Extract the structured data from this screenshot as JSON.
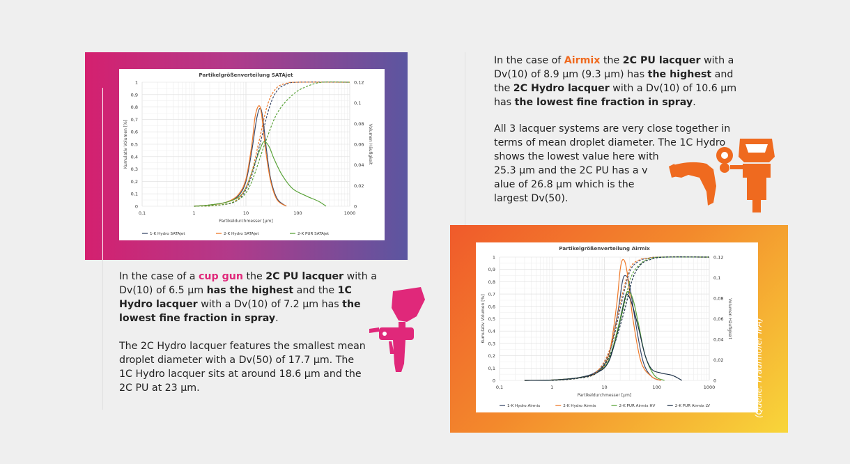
{
  "text_left": {
    "p1": {
      "pre": "In the case of a ",
      "highlight": "cup gun",
      "mid1": " the ",
      "bold1": "2C PU lacquer",
      "mid2": " with a Dv(10) of 6.5 µm ",
      "bold2": "has the highest",
      "mid3": " and the ",
      "bold3": "1C Hydro lacquer",
      "mid4": " with a Dv(10) of 7.2 µm has ",
      "bold4": "the lowest fine fraction in spray",
      "end": "."
    },
    "p2": "The 2C Hydro lacquer features the smallest mean droplet diameter with a Dv(50) of 17.7 µm. The 1C Hydro lacquer sits at around 18.6 µm and the 2C PU at 23 µm."
  },
  "text_right": {
    "p1": {
      "pre": "In the case of ",
      "highlight": "Airmix",
      "mid1": " the ",
      "bold1": "2C PU lacquer",
      "mid2": " with a Dv(10) of 8.9 µm (9.3 µm) has ",
      "bold2": "the highest",
      "mid3": " and the ",
      "bold3": "2C Hydro lacquer",
      "mid4": " with a Dv(10) of 10.6 µm has ",
      "bold4": "the lowest fine fraction in spray",
      "end": "."
    },
    "p2_lines": [
      "All 3 lacquer systems are very close together in",
      "terms of mean droplet diameter. The 1C Hydro",
      "shows the lowest value here with",
      "25.3 µm and the 2C PU has a v",
      "alue of 26.8 µm which is the",
      "largest Dv(50)."
    ]
  },
  "source_note": "(Quelle: Fraunhofer IPA)",
  "colors": {
    "pink": "#e0287a",
    "orange": "#ef6a1f",
    "series_blue": "#3b4a6b",
    "series_orange": "#ef7a2a",
    "series_green": "#5aa33a",
    "series_navy": "#1c3048"
  },
  "icons": [
    "cup-gun-spray-icon",
    "airmix-spray-gun-icon"
  ],
  "chart_data": [
    {
      "type": "line",
      "title": "Partikelgrößenverteilung SATAjet",
      "xlabel": "Partikeldurchmesser  [µm]",
      "ylabel_left": "Kumulativ Volumen [%]",
      "ylabel_right": "Volumen Häufigkeit",
      "x_scale": "log",
      "xlim": [
        0.1,
        1000
      ],
      "x_ticks": [
        "0,1",
        "1",
        "10",
        "100",
        "1000"
      ],
      "ylim_left": [
        0,
        1
      ],
      "y_ticks_left": [
        "0",
        "0,1",
        "0,2",
        "0,3",
        "0,4",
        "0,5",
        "0,6",
        "0,7",
        "0,8",
        "0,9",
        "1"
      ],
      "ylim_right": [
        0,
        0.12
      ],
      "y_ticks_right": [
        "0",
        "0,02",
        "0,04",
        "0,06",
        "0,08",
        "0,1",
        "0,12"
      ],
      "grid": true,
      "legend_position": "bottom",
      "series": [
        {
          "name": "1-K Hydro SATAjet",
          "color": "#3b4a6b",
          "style": "solid",
          "axis": "left",
          "x": [
            1,
            2,
            4,
            7,
            10,
            13,
            16,
            18.6,
            21,
            25,
            30,
            40,
            60
          ],
          "y": [
            0.0,
            0.01,
            0.03,
            0.08,
            0.2,
            0.45,
            0.7,
            0.79,
            0.72,
            0.45,
            0.22,
            0.06,
            0.0
          ]
        },
        {
          "name": "2-K Hydro SATAjet",
          "color": "#ef7a2a",
          "style": "solid",
          "axis": "left",
          "x": [
            1,
            2,
            4,
            7,
            10,
            13,
            15,
            17.7,
            20,
            24,
            30,
            40,
            60
          ],
          "y": [
            0.0,
            0.01,
            0.03,
            0.09,
            0.22,
            0.5,
            0.72,
            0.81,
            0.74,
            0.45,
            0.2,
            0.05,
            0.0
          ]
        },
        {
          "name": "2-K PUR SATAjet",
          "color": "#5aa33a",
          "style": "solid",
          "axis": "left",
          "x": [
            1,
            2,
            4,
            7,
            10,
            15,
            20,
            23,
            28,
            35,
            50,
            80,
            150,
            250,
            350
          ],
          "y": [
            0.0,
            0.01,
            0.03,
            0.07,
            0.15,
            0.35,
            0.49,
            0.52,
            0.48,
            0.38,
            0.25,
            0.14,
            0.08,
            0.04,
            0.0
          ]
        },
        {
          "name": "1-K Hydro SATAjet (kumulativ)",
          "color": "#3b4a6b",
          "style": "dashed",
          "axis": "right",
          "x": [
            1,
            3,
            7,
            12,
            18.6,
            28,
            40,
            60,
            100,
            1000
          ],
          "y": [
            0.0,
            0.001,
            0.006,
            0.025,
            0.06,
            0.095,
            0.112,
            0.118,
            0.12,
            0.12
          ]
        },
        {
          "name": "2-K Hydro SATAjet (kumulativ)",
          "color": "#ef7a2a",
          "style": "dashed",
          "axis": "right",
          "x": [
            1,
            3,
            7,
            12,
            17.7,
            26,
            38,
            60,
            100,
            1000
          ],
          "y": [
            0.0,
            0.001,
            0.007,
            0.028,
            0.062,
            0.098,
            0.114,
            0.119,
            0.12,
            0.12
          ]
        },
        {
          "name": "2-K PUR SATAjet (kumulativ)",
          "color": "#5aa33a",
          "style": "dashed",
          "axis": "right",
          "x": [
            1,
            3,
            7,
            12,
            23,
            40,
            80,
            150,
            300,
            1000
          ],
          "y": [
            0.0,
            0.001,
            0.006,
            0.02,
            0.06,
            0.09,
            0.108,
            0.116,
            0.12,
            0.12
          ]
        }
      ]
    },
    {
      "type": "line",
      "title": "Partikelgrößenverteilung Airmix",
      "xlabel": "Partikeldurchmesser  [µm]",
      "ylabel_left": "Kumulativ Volumen [%]",
      "ylabel_right": "Volumen Häufigkeit",
      "x_scale": "log",
      "xlim": [
        0.1,
        1000
      ],
      "x_ticks": [
        "0,1",
        "1",
        "10",
        "100",
        "1000"
      ],
      "ylim_left": [
        0,
        1
      ],
      "y_ticks_left": [
        "0",
        "0,1",
        "0,2",
        "0,3",
        "0,4",
        "0,5",
        "0,6",
        "0,7",
        "0,8",
        "0,9",
        "1"
      ],
      "ylim_right": [
        0,
        0.12
      ],
      "y_ticks_right": [
        "0",
        "0,02",
        "0,04",
        "0,06",
        "0,08",
        "0,1",
        "0,12"
      ],
      "grid": true,
      "legend_position": "bottom",
      "series": [
        {
          "name": "1-K Hydro Airmix",
          "color": "#3b4a6b",
          "style": "solid",
          "axis": "left",
          "x": [
            0.3,
            1,
            3,
            7,
            12,
            18,
            22,
            25.3,
            30,
            40,
            55,
            80,
            120
          ],
          "y": [
            0.0,
            0.003,
            0.02,
            0.07,
            0.2,
            0.55,
            0.8,
            0.85,
            0.78,
            0.45,
            0.15,
            0.03,
            0.0
          ]
        },
        {
          "name": "2-K Hydro Airmix",
          "color": "#ef7a2a",
          "style": "solid",
          "axis": "left",
          "x": [
            0.3,
            1,
            3,
            7,
            12,
            17,
            20,
            23,
            27,
            35,
            50,
            80,
            120
          ],
          "y": [
            0.0,
            0.003,
            0.02,
            0.06,
            0.2,
            0.6,
            0.9,
            0.98,
            0.88,
            0.5,
            0.15,
            0.03,
            0.0
          ]
        },
        {
          "name": "2-K PUR Airmix HV",
          "color": "#5aa33a",
          "style": "solid",
          "axis": "left",
          "x": [
            0.3,
            1,
            3,
            7,
            12,
            18,
            24,
            28,
            35,
            45,
            60,
            90,
            140
          ],
          "y": [
            0.0,
            0.003,
            0.02,
            0.06,
            0.16,
            0.42,
            0.65,
            0.72,
            0.66,
            0.45,
            0.2,
            0.04,
            0.0
          ]
        },
        {
          "name": "2-K PUR Airmix LV",
          "color": "#1c3048",
          "style": "solid",
          "axis": "left",
          "x": [
            0.3,
            1,
            3,
            7,
            12,
            18,
            24,
            26.8,
            33,
            45,
            60,
            80,
            120,
            200,
            300
          ],
          "y": [
            0.0,
            0.003,
            0.02,
            0.06,
            0.15,
            0.4,
            0.64,
            0.7,
            0.63,
            0.42,
            0.2,
            0.09,
            0.06,
            0.04,
            0.0
          ]
        },
        {
          "name": "1-K Hydro Airmix (kumulativ)",
          "color": "#3b4a6b",
          "style": "dashed",
          "axis": "right",
          "x": [
            1,
            3,
            7,
            13,
            20,
            30,
            45,
            70,
            120,
            1000
          ],
          "y": [
            0.0,
            0.002,
            0.008,
            0.03,
            0.07,
            0.105,
            0.116,
            0.119,
            0.12,
            0.12
          ]
        },
        {
          "name": "2-K Hydro Airmix (kumulativ)",
          "color": "#ef7a2a",
          "style": "dashed",
          "axis": "right",
          "x": [
            1,
            3,
            7,
            13,
            20,
            30,
            45,
            70,
            120,
            1000
          ],
          "y": [
            0.0,
            0.002,
            0.008,
            0.032,
            0.075,
            0.108,
            0.117,
            0.119,
            0.12,
            0.12
          ]
        },
        {
          "name": "2-K PUR Airmix HV (kumulativ)",
          "color": "#5aa33a",
          "style": "dashed",
          "axis": "right",
          "x": [
            1,
            3,
            7,
            13,
            22,
            32,
            50,
            80,
            150,
            1000
          ],
          "y": [
            0.0,
            0.002,
            0.007,
            0.026,
            0.066,
            0.1,
            0.114,
            0.119,
            0.12,
            0.12
          ]
        },
        {
          "name": "2-K PUR Airmix LV (kumulativ)",
          "color": "#1c3048",
          "style": "dashed",
          "axis": "right",
          "x": [
            1,
            3,
            7,
            13,
            23,
            34,
            50,
            80,
            150,
            1000
          ],
          "y": [
            0.0,
            0.002,
            0.007,
            0.025,
            0.064,
            0.098,
            0.113,
            0.118,
            0.12,
            0.12
          ]
        }
      ]
    }
  ]
}
